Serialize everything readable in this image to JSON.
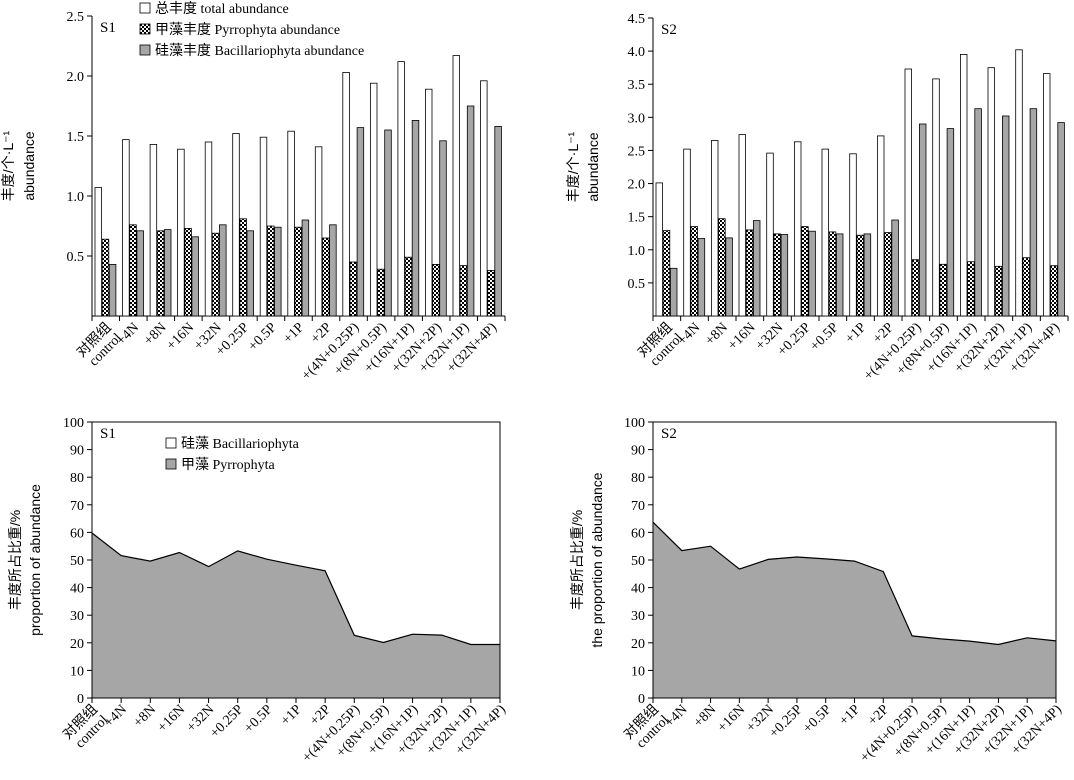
{
  "chart_data": [
    {
      "type": "bar",
      "panel_title": "S1",
      "ylabel_line1": "丰度/个·L⁻¹",
      "ylabel_line2": "abundance",
      "ylim": [
        0,
        2.5
      ],
      "yticks": [
        0.5,
        1.0,
        1.5,
        2.0,
        2.5
      ],
      "tick_decimals": 1,
      "categories": [
        "对照组\ncontrol",
        "+4N",
        "+8N",
        "+16N",
        "+32N",
        "+0.25P",
        "+0.5P",
        "+1P",
        "+2P",
        "+(4N+0.25P)",
        "+(8N+0.5P)",
        "+(16N+1P)",
        "+(32N+2P)",
        "+(32N+1P)",
        "+(32N+4P)"
      ],
      "legend_position": "top-left",
      "series": [
        {
          "name": "总丰度 total abundance",
          "pattern": "white",
          "values": [
            1.07,
            1.47,
            1.43,
            1.39,
            1.45,
            1.52,
            1.49,
            1.54,
            1.41,
            2.03,
            1.94,
            2.12,
            1.89,
            2.17,
            1.96
          ]
        },
        {
          "name": "甲藻丰度 Pyrrophyta abundance",
          "pattern": "checker",
          "values": [
            0.64,
            0.76,
            0.71,
            0.73,
            0.69,
            0.81,
            0.75,
            0.74,
            0.65,
            0.45,
            0.39,
            0.49,
            0.43,
            0.42,
            0.38
          ]
        },
        {
          "name": "硅藻丰度 Bacillariophyta abundance",
          "pattern": "gray",
          "values": [
            0.43,
            0.71,
            0.72,
            0.66,
            0.76,
            0.71,
            0.74,
            0.8,
            0.76,
            1.57,
            1.55,
            1.63,
            1.46,
            1.75,
            1.58
          ]
        }
      ]
    },
    {
      "type": "bar",
      "panel_title": "S2",
      "ylabel_line1": "丰度/个·L⁻¹",
      "ylabel_line2": "abundance",
      "ylim": [
        0,
        4.5
      ],
      "yticks": [
        0.5,
        1.0,
        1.5,
        2.0,
        2.5,
        3.0,
        3.5,
        4.0,
        4.5
      ],
      "tick_decimals": 1,
      "categories": [
        "对照组\ncontrol",
        "+4N",
        "+8N",
        "+16N",
        "+32N",
        "+0.25P",
        "+0.5P",
        "+1P",
        "+2P",
        "+(4N+0.25P)",
        "+(8N+0.5P)",
        "+(16N+1P)",
        "+(32N+2P)",
        "+(32N+1P)",
        "+(32N+4P)"
      ],
      "series": [
        {
          "pattern": "white",
          "values": [
            2.01,
            2.52,
            2.65,
            2.74,
            2.46,
            2.63,
            2.52,
            2.45,
            2.72,
            3.73,
            3.58,
            3.95,
            3.75,
            4.02,
            3.66
          ]
        },
        {
          "pattern": "checker",
          "values": [
            1.29,
            1.35,
            1.47,
            1.3,
            1.24,
            1.35,
            1.27,
            1.22,
            1.26,
            0.85,
            0.78,
            0.82,
            0.75,
            0.88,
            0.76
          ]
        },
        {
          "pattern": "gray",
          "values": [
            0.72,
            1.17,
            1.18,
            1.44,
            1.23,
            1.28,
            1.24,
            1.24,
            1.45,
            2.9,
            2.83,
            3.13,
            3.02,
            3.13,
            2.92
          ]
        }
      ]
    },
    {
      "type": "area",
      "panel_title": "S1",
      "ylabel_line1": "丰度所占比重/%",
      "ylabel_line2": "proportion of abundance",
      "ylim": [
        0,
        100
      ],
      "yticks": [
        0,
        10,
        20,
        30,
        40,
        50,
        60,
        70,
        80,
        90,
        100
      ],
      "tick_decimals": 0,
      "categories": [
        "对照组\ncontrol",
        "+4N",
        "+8N",
        "+16N",
        "+32N",
        "+0.25P",
        "+0.5P",
        "+1P",
        "+2P",
        "+(4N+0.25P)",
        "+(8N+0.5P)",
        "+(16N+1P)",
        "+(32N+2P)",
        "+(32N+1P)",
        "+(32N+4P)"
      ],
      "legend_position": "top-left",
      "series": [
        {
          "name": "硅藻 Bacillariophyta",
          "pattern": "white",
          "values": [
            40.2,
            48.4,
            50.4,
            47.3,
            52.4,
            46.7,
            49.7,
            51.9,
            53.9,
            77.3,
            79.9,
            76.9,
            77.2,
            80.6,
            80.6
          ]
        },
        {
          "name": "甲藻 Pyrrophyta",
          "pattern": "gray",
          "values": [
            59.8,
            51.6,
            49.6,
            52.7,
            47.6,
            53.3,
            50.3,
            48.1,
            46.1,
            22.7,
            20.1,
            23.1,
            22.8,
            19.4,
            19.4
          ]
        }
      ]
    },
    {
      "type": "area",
      "panel_title": "S2",
      "ylabel_line1": "丰度所占比重/%",
      "ylabel_line2": "the proportion of abundance",
      "ylim": [
        0,
        100
      ],
      "yticks": [
        0,
        10,
        20,
        30,
        40,
        50,
        60,
        70,
        80,
        90,
        100
      ],
      "tick_decimals": 0,
      "categories": [
        "对照组\ncontrol",
        "+4N",
        "+8N",
        "+16N",
        "+32N",
        "+0.25P",
        "+0.5P",
        "+1P",
        "+2P",
        "+(4N+0.25P)",
        "+(8N+0.5P)",
        "+(16N+1P)",
        "+(32N+2P)",
        "+(32N+1P)",
        "+(32N+4P)"
      ],
      "series": [
        {
          "pattern": "white",
          "values": [
            36.3,
            46.6,
            45.0,
            53.3,
            49.8,
            48.9,
            49.6,
            50.4,
            54.2,
            77.5,
            78.6,
            79.4,
            80.6,
            78.2,
            79.3
          ]
        },
        {
          "pattern": "gray",
          "values": [
            63.7,
            53.4,
            55.0,
            46.7,
            50.2,
            51.1,
            50.4,
            49.6,
            45.8,
            22.5,
            21.4,
            20.6,
            19.4,
            21.8,
            20.7
          ]
        }
      ]
    }
  ]
}
